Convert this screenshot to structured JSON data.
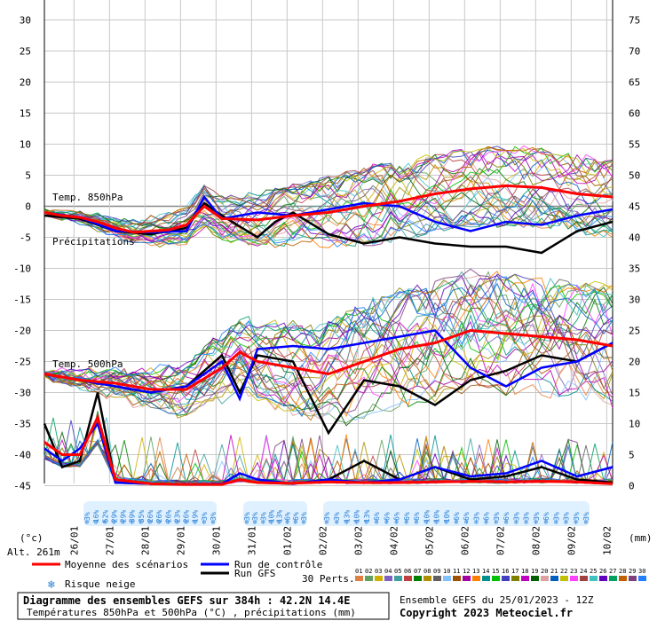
{
  "chart_data": {
    "type": "line",
    "left_axis_ticks": [
      "30",
      "25",
      "20",
      "15",
      "10",
      "5",
      "0",
      "-5",
      "-10",
      "-15",
      "-20",
      "-25",
      "-30",
      "-35",
      "-40",
      "-45"
    ],
    "right_axis_ticks": [
      "75",
      "70",
      "65",
      "60",
      "55",
      "50",
      "45",
      "40",
      "35",
      "30",
      "25",
      "20",
      "15",
      "10",
      "5",
      "0"
    ],
    "left_unit": "(°c)",
    "right_unit": "(mm)",
    "altitude": "Alt. 261m",
    "date_ticks": [
      "26/01",
      "27/01",
      "28/01",
      "29/01",
      "30/01",
      "31/01",
      "01/02",
      "02/02",
      "03/02",
      "04/02",
      "05/02",
      "06/02",
      "07/02",
      "08/02",
      "09/02",
      "10/02"
    ],
    "annotations": {
      "t850": "Temp. 850hPa",
      "precip": "Précipitations",
      "t500": "Temp. 500hPa"
    },
    "snow_risk": {
      "group1": [
        "3%",
        "16%",
        "52%",
        "29%",
        "29%",
        "39%",
        "35%",
        "26%",
        "26%",
        "26%",
        "23%",
        "26%",
        "19%",
        "3%",
        "3%"
      ],
      "group2": [
        "3%",
        "3%",
        "3%",
        "10%",
        "13%",
        "6%",
        "6%",
        "3%"
      ],
      "group3": [
        "3%",
        "3%",
        "13%",
        "10%",
        "13%",
        "6%",
        "6%",
        "6%",
        "6%",
        "6%",
        "10%",
        "10%",
        "10%",
        "6%",
        "6%",
        "3%",
        "6%",
        "3%",
        "6%",
        "3%",
        "3%",
        "3%",
        "6%",
        "3%",
        "3%",
        "3%",
        "3%"
      ]
    },
    "series": [
      {
        "name": "Moyenne des scénarios",
        "color": "#ff0000",
        "t850": [
          [
            0,
            -1
          ],
          [
            12,
            -1.5
          ],
          [
            24,
            -1.8
          ],
          [
            36,
            -2.5
          ],
          [
            48,
            -3.5
          ],
          [
            60,
            -4.2
          ],
          [
            72,
            -4
          ],
          [
            84,
            -3.8
          ],
          [
            96,
            -3
          ],
          [
            108,
            0
          ],
          [
            120,
            -2
          ],
          [
            144,
            -2.2
          ],
          [
            168,
            -1.5
          ],
          [
            192,
            -1
          ],
          [
            216,
            0
          ],
          [
            240,
            0.8
          ],
          [
            264,
            2
          ],
          [
            288,
            2.8
          ],
          [
            312,
            3.3
          ],
          [
            336,
            3
          ],
          [
            360,
            2
          ],
          [
            384,
            1.5
          ]
        ],
        "t500": [
          [
            0,
            -27
          ],
          [
            24,
            -28
          ],
          [
            48,
            -28.5
          ],
          [
            72,
            -29.5
          ],
          [
            96,
            -29.5
          ],
          [
            120,
            -26
          ],
          [
            132,
            -23.5
          ],
          [
            144,
            -25
          ],
          [
            168,
            -26
          ],
          [
            192,
            -27
          ],
          [
            216,
            -25
          ],
          [
            240,
            -23
          ],
          [
            264,
            -22
          ],
          [
            288,
            -20
          ],
          [
            312,
            -20.5
          ],
          [
            336,
            -21
          ],
          [
            360,
            -21.5
          ],
          [
            384,
            -22.5
          ]
        ],
        "precip": [
          [
            0,
            7
          ],
          [
            12,
            5
          ],
          [
            24,
            5
          ],
          [
            36,
            11
          ],
          [
            48,
            1
          ],
          [
            72,
            0.3
          ],
          [
            96,
            0.2
          ],
          [
            120,
            0.2
          ],
          [
            132,
            1
          ],
          [
            144,
            0.5
          ],
          [
            168,
            0.4
          ],
          [
            192,
            0.6
          ],
          [
            216,
            0.5
          ],
          [
            240,
            0.5
          ],
          [
            264,
            0.6
          ],
          [
            288,
            0.7
          ],
          [
            312,
            0.6
          ],
          [
            336,
            0.7
          ],
          [
            360,
            0.6
          ],
          [
            384,
            0.3
          ]
        ]
      },
      {
        "name": "Run de contrôle",
        "color": "#0000ff",
        "t850": [
          [
            0,
            -1
          ],
          [
            24,
            -1.8
          ],
          [
            48,
            -4
          ],
          [
            72,
            -4.2
          ],
          [
            96,
            -4
          ],
          [
            108,
            1.5
          ],
          [
            120,
            -2
          ],
          [
            144,
            -1
          ],
          [
            168,
            -1.5
          ],
          [
            192,
            -0.5
          ],
          [
            216,
            0.5
          ],
          [
            240,
            0
          ],
          [
            264,
            -2.5
          ],
          [
            288,
            -4
          ],
          [
            312,
            -2.5
          ],
          [
            336,
            -3
          ],
          [
            360,
            -1.5
          ],
          [
            384,
            -0.5
          ]
        ],
        "t500": [
          [
            0,
            -27
          ],
          [
            24,
            -28
          ],
          [
            48,
            -29
          ],
          [
            72,
            -30
          ],
          [
            96,
            -29
          ],
          [
            120,
            -25
          ],
          [
            132,
            -31
          ],
          [
            144,
            -23
          ],
          [
            168,
            -22.5
          ],
          [
            192,
            -23
          ],
          [
            216,
            -22
          ],
          [
            240,
            -21
          ],
          [
            264,
            -20
          ],
          [
            288,
            -26
          ],
          [
            312,
            -29
          ],
          [
            336,
            -26
          ],
          [
            360,
            -25
          ],
          [
            384,
            -22
          ]
        ],
        "precip": [
          [
            0,
            6
          ],
          [
            12,
            4
          ],
          [
            24,
            6
          ],
          [
            36,
            10
          ],
          [
            48,
            0.5
          ],
          [
            72,
            0.3
          ],
          [
            96,
            0.2
          ],
          [
            120,
            0.3
          ],
          [
            132,
            2
          ],
          [
            144,
            1
          ],
          [
            168,
            0.3
          ],
          [
            192,
            1
          ],
          [
            216,
            0.5
          ],
          [
            240,
            1
          ],
          [
            264,
            3
          ],
          [
            288,
            1.5
          ],
          [
            312,
            2
          ],
          [
            336,
            4
          ],
          [
            360,
            1.5
          ],
          [
            384,
            3
          ]
        ]
      },
      {
        "name": "Run GFS",
        "color": "#000000",
        "t850": [
          [
            0,
            -1.5
          ],
          [
            24,
            -2
          ],
          [
            48,
            -4
          ],
          [
            72,
            -4.5
          ],
          [
            96,
            -3.5
          ],
          [
            108,
            0.5
          ],
          [
            120,
            -1.5
          ],
          [
            144,
            -5
          ],
          [
            156,
            -2.5
          ],
          [
            168,
            -1
          ],
          [
            192,
            -4.5
          ],
          [
            216,
            -6
          ],
          [
            240,
            -5
          ],
          [
            264,
            -6
          ],
          [
            288,
            -6.5
          ],
          [
            312,
            -6.5
          ],
          [
            336,
            -7.5
          ],
          [
            360,
            -4
          ],
          [
            384,
            -2.5
          ]
        ],
        "t500": [
          [
            0,
            -27
          ],
          [
            24,
            -28
          ],
          [
            48,
            -29
          ],
          [
            72,
            -30
          ],
          [
            96,
            -29
          ],
          [
            120,
            -24
          ],
          [
            132,
            -30
          ],
          [
            144,
            -24
          ],
          [
            168,
            -25
          ],
          [
            192,
            -36.5
          ],
          [
            216,
            -28
          ],
          [
            240,
            -29
          ],
          [
            264,
            -32
          ],
          [
            288,
            -28
          ],
          [
            312,
            -26.5
          ],
          [
            336,
            -24
          ],
          [
            360,
            -25
          ],
          [
            384,
            -22
          ]
        ],
        "precip": [
          [
            0,
            10
          ],
          [
            12,
            3
          ],
          [
            24,
            4
          ],
          [
            36,
            15
          ],
          [
            48,
            0.5
          ],
          [
            72,
            0.3
          ],
          [
            96,
            0.2
          ],
          [
            120,
            0.2
          ],
          [
            132,
            1
          ],
          [
            144,
            0.5
          ],
          [
            168,
            0.3
          ],
          [
            192,
            1
          ],
          [
            216,
            4
          ],
          [
            240,
            1
          ],
          [
            264,
            3
          ],
          [
            288,
            1
          ],
          [
            312,
            1.5
          ],
          [
            336,
            3
          ],
          [
            360,
            1
          ],
          [
            384,
            0.5
          ]
        ]
      }
    ],
    "perturbation_colors": [
      "#e08040",
      "#60a060",
      "#d0b000",
      "#8060c0",
      "#40a0a0",
      "#c04040",
      "#008000",
      "#b09000",
      "#606060",
      "#80c0ff",
      "#a05000",
      "#a000a0",
      "#ff8000",
      "#009090",
      "#00c000",
      "#4040c0",
      "#808000",
      "#c000c0",
      "#006000",
      "#e0a0a0",
      "#0060c0",
      "#c0c000",
      "#ff40ff",
      "#a04040",
      "#40c0c0",
      "#6000c0",
      "#00a060",
      "#c06000",
      "#804080",
      "#2080ff"
    ]
  },
  "legend": {
    "mean": "Moyenne des scénarios",
    "control": "Run de contrôle",
    "gfs": "Run GFS",
    "snow": "Risque neige",
    "perts": "30 Perts.",
    "pert_numbers": [
      "01",
      "02",
      "03",
      "04",
      "05",
      "06",
      "07",
      "08",
      "09",
      "10",
      "11",
      "12",
      "13",
      "14",
      "15",
      "16",
      "17",
      "18",
      "19",
      "20",
      "21",
      "22",
      "23",
      "24",
      "25",
      "26",
      "27",
      "28",
      "29",
      "30"
    ]
  },
  "footer": {
    "title": "Diagramme des ensembles GEFS sur 384h : 42.2N 14.4E",
    "subtitle": "Températures 850hPa et 500hPa (°C) , précipitations (mm)",
    "ensemble": "Ensemble GEFS du 25/01/2023 - 12Z",
    "copyright": "Copyright 2023 Meteociel.fr"
  }
}
